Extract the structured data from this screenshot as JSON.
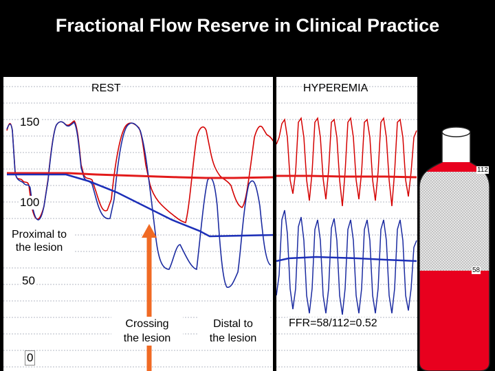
{
  "title": "Fractional Flow Reserve in Clinical Practice",
  "labels": {
    "rest": "REST",
    "hyperemia": "HYPEREMIA",
    "y150": "150",
    "y100": "100",
    "y50": "50",
    "y0": "0",
    "proximal_line1": "Proximal to",
    "proximal_line2": "the lesion",
    "crossing_line1": "Crossing",
    "crossing_line2": "the lesion",
    "distal_line1": "Distal to",
    "distal_line2": "the lesion",
    "ffr": "FFR=58/112=0.52",
    "bottle_top": "112",
    "bottle_bottom": "58"
  },
  "colors": {
    "proximal_trace": "#d40000",
    "distal_trace": "#1a2aa0",
    "arrow": "#f06a24",
    "bottle_fill": "#e8001e"
  }
}
